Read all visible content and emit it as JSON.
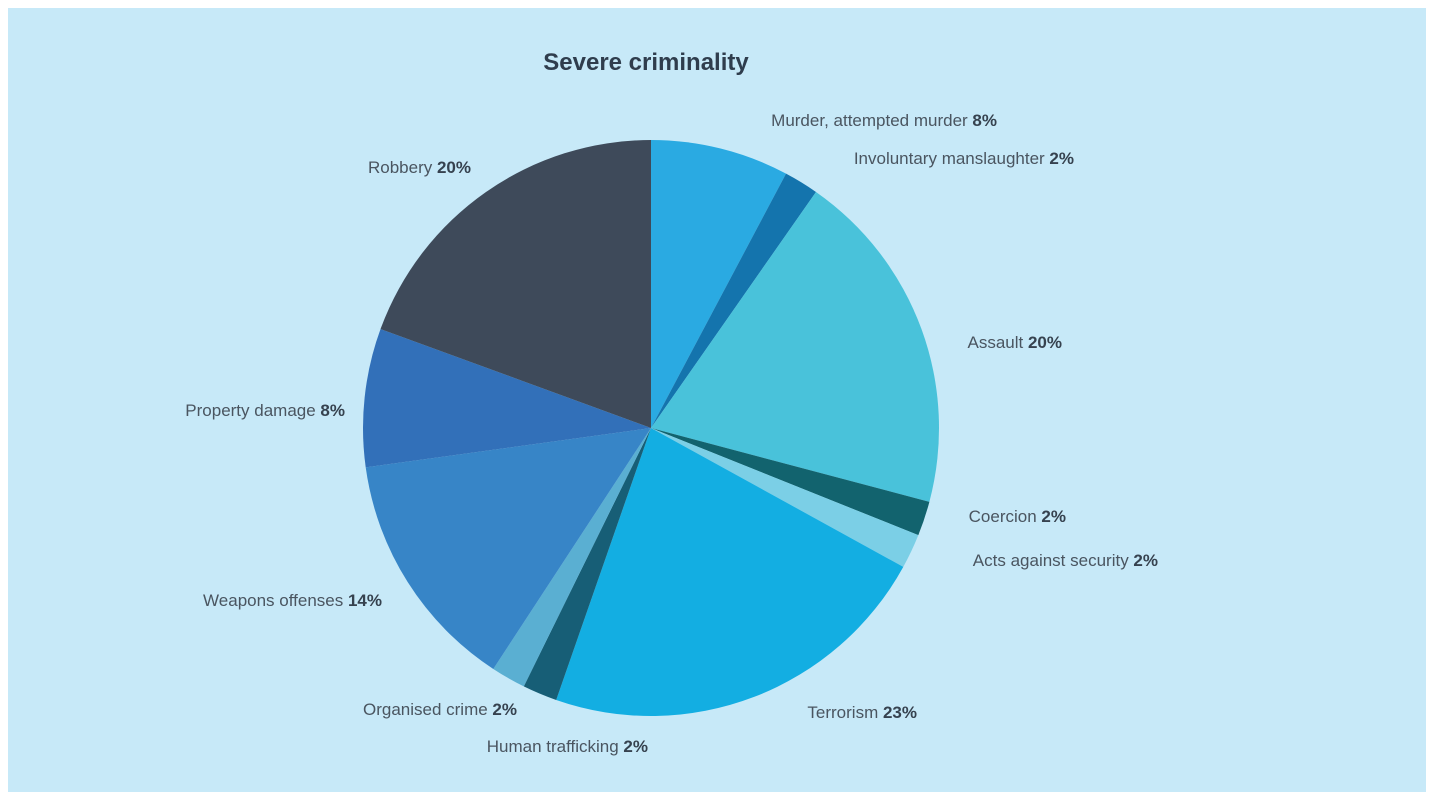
{
  "chart_data": {
    "type": "pie",
    "title": "Severe criminality",
    "slices": [
      {
        "label": "Murder, attempted murder",
        "value": 8,
        "pct_label": "8%",
        "color": "#2aaae2"
      },
      {
        "label": "Involuntary manslaughter",
        "value": 2,
        "pct_label": "2%",
        "color": "#1474ad"
      },
      {
        "label": "Assault",
        "value": 20,
        "pct_label": "20%",
        "color": "#49c2da"
      },
      {
        "label": "Coercion",
        "value": 2,
        "pct_label": "2%",
        "color": "#12636e"
      },
      {
        "label": "Acts against security",
        "value": 2,
        "pct_label": "2%",
        "color": "#7bcfe6"
      },
      {
        "label": "Terrorism",
        "value": 23,
        "pct_label": "23%",
        "color": "#13aee2"
      },
      {
        "label": "Human trafficking",
        "value": 2,
        "pct_label": "2%",
        "color": "#175e76"
      },
      {
        "label": "Organised crime",
        "value": 2,
        "pct_label": "2%",
        "color": "#5aafd2"
      },
      {
        "label": "Weapons offenses",
        "value": 14,
        "pct_label": "14%",
        "color": "#3785c7"
      },
      {
        "label": "Property damage",
        "value": 8,
        "pct_label": "8%",
        "color": "#3270b9"
      },
      {
        "label": "Robbery",
        "value": 20,
        "pct_label": "20%",
        "color": "#3e4a5a"
      }
    ]
  }
}
